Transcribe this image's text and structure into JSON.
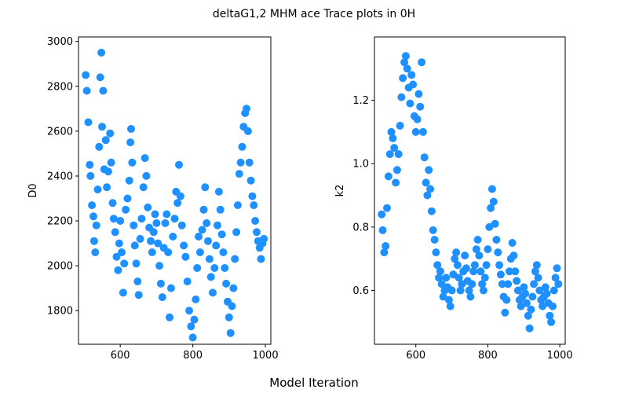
{
  "figure": {
    "title": "deltaG1,2 MHM ace Trace plots in 0H",
    "xlabel": "Model Iteration"
  },
  "colors": {
    "points": "#1e90ff",
    "axes": "#000000"
  },
  "chart_data": [
    {
      "type": "scatter",
      "title": "",
      "xlabel": "",
      "ylabel": "D0",
      "xlim": [
        485,
        1015
      ],
      "ylim": [
        1650,
        3020
      ],
      "xticks": [
        600,
        800,
        1000
      ],
      "yticks": [
        1800,
        2000,
        2200,
        2400,
        2600,
        2800,
        3000
      ],
      "x": [
        505,
        508,
        512,
        516,
        518,
        522,
        526,
        528,
        531,
        534,
        538,
        542,
        545,
        548,
        550,
        553,
        556,
        560,
        563,
        567,
        572,
        575,
        579,
        582,
        586,
        590,
        594,
        597,
        600,
        604,
        608,
        611,
        615,
        620,
        625,
        628,
        630,
        633,
        637,
        640,
        644,
        648,
        651,
        655,
        659,
        664,
        668,
        672,
        676,
        680,
        684,
        688,
        692,
        696,
        700,
        704,
        708,
        712,
        716,
        720,
        724,
        728,
        732,
        736,
        740,
        745,
        750,
        754,
        758,
        762,
        766,
        770,
        775,
        780,
        785,
        790,
        795,
        800,
        804,
        808,
        812,
        816,
        820,
        826,
        830,
        834,
        838,
        842,
        846,
        850,
        855,
        860,
        864,
        868,
        872,
        876,
        880,
        884,
        888,
        892,
        896,
        900,
        904,
        908,
        912,
        916,
        920,
        924,
        928,
        932,
        936,
        940,
        944,
        948,
        952,
        956,
        960,
        964,
        968,
        972,
        976,
        980,
        984,
        988,
        992,
        996
      ],
      "y": [
        2850,
        2780,
        2640,
        2450,
        2400,
        2270,
        2220,
        2110,
        2060,
        2180,
        2340,
        2530,
        2840,
        2950,
        2620,
        2780,
        2430,
        2560,
        2350,
        2420,
        2590,
        2460,
        2280,
        2210,
        2150,
        2040,
        1980,
        2100,
        2200,
        2060,
        1880,
        2010,
        2250,
        2300,
        2380,
        2550,
        2610,
        2460,
        2180,
        2090,
        2010,
        1930,
        1870,
        2120,
        2210,
        2350,
        2480,
        2400,
        2260,
        2170,
        2110,
        2060,
        2150,
        2230,
        2190,
        2100,
        2000,
        1920,
        1860,
        2080,
        2190,
        2230,
        2060,
        1770,
        1900,
        2130,
        2210,
        2330,
        2280,
        2450,
        2310,
        2180,
        2090,
        2040,
        1930,
        1800,
        1730,
        1680,
        1760,
        1850,
        1990,
        2130,
        2060,
        2160,
        2250,
        2350,
        2190,
        2110,
        2030,
        1950,
        1880,
        1990,
        2090,
        2180,
        2330,
        2250,
        2140,
        2060,
        1990,
        1920,
        1840,
        1770,
        1700,
        1820,
        1900,
        2030,
        2150,
        2270,
        2410,
        2460,
        2530,
        2620,
        2680,
        2700,
        2600,
        2460,
        2380,
        2310,
        2270,
        2200,
        2150,
        2110,
        2080,
        2030,
        2100,
        2120
      ]
    },
    {
      "type": "scatter",
      "title": "",
      "xlabel": "",
      "ylabel": "k2",
      "xlim": [
        485,
        1015
      ],
      "ylim": [
        0.43,
        1.4
      ],
      "xticks": [
        600,
        800,
        1000
      ],
      "yticks": [
        0.6,
        0.8,
        1.0,
        1.2
      ],
      "x": [
        505,
        508,
        512,
        516,
        520,
        524,
        528,
        532,
        536,
        540,
        544,
        548,
        552,
        556,
        560,
        564,
        568,
        572,
        576,
        580,
        584,
        588,
        592,
        596,
        600,
        604,
        608,
        612,
        616,
        620,
        624,
        628,
        632,
        636,
        640,
        644,
        648,
        652,
        656,
        660,
        664,
        668,
        672,
        676,
        680,
        684,
        688,
        692,
        696,
        700,
        704,
        708,
        712,
        716,
        720,
        724,
        728,
        732,
        736,
        740,
        744,
        748,
        752,
        756,
        760,
        764,
        768,
        772,
        776,
        780,
        784,
        788,
        792,
        796,
        800,
        804,
        808,
        812,
        816,
        820,
        824,
        828,
        832,
        836,
        840,
        844,
        848,
        852,
        856,
        860,
        864,
        868,
        872,
        876,
        880,
        884,
        888,
        892,
        896,
        900,
        904,
        908,
        912,
        916,
        920,
        924,
        928,
        932,
        936,
        940,
        944,
        948,
        952,
        956,
        960,
        964,
        968,
        972,
        976,
        980,
        984,
        988,
        992,
        996
      ],
      "y": [
        0.84,
        0.79,
        0.72,
        0.74,
        0.86,
        0.96,
        1.03,
        1.1,
        1.08,
        1.05,
        0.94,
        0.98,
        1.03,
        1.12,
        1.21,
        1.27,
        1.32,
        1.34,
        1.3,
        1.24,
        1.19,
        1.28,
        1.25,
        1.15,
        1.1,
        1.14,
        1.22,
        1.18,
        1.32,
        1.1,
        1.02,
        0.94,
        0.9,
        0.98,
        0.92,
        0.85,
        0.79,
        0.76,
        0.72,
        0.68,
        0.64,
        0.66,
        0.62,
        0.58,
        0.6,
        0.64,
        0.61,
        0.57,
        0.55,
        0.6,
        0.65,
        0.7,
        0.72,
        0.68,
        0.64,
        0.6,
        0.62,
        0.66,
        0.71,
        0.67,
        0.63,
        0.6,
        0.58,
        0.62,
        0.66,
        0.68,
        0.73,
        0.76,
        0.71,
        0.66,
        0.62,
        0.6,
        0.64,
        0.68,
        0.73,
        0.8,
        0.86,
        0.92,
        0.88,
        0.81,
        0.76,
        0.72,
        0.68,
        0.65,
        0.62,
        0.58,
        0.53,
        0.57,
        0.62,
        0.66,
        0.7,
        0.75,
        0.71,
        0.66,
        0.63,
        0.6,
        0.57,
        0.55,
        0.58,
        0.61,
        0.59,
        0.56,
        0.52,
        0.48,
        0.54,
        0.58,
        0.62,
        0.66,
        0.68,
        0.64,
        0.6,
        0.57,
        0.55,
        0.58,
        0.61,
        0.59,
        0.56,
        0.52,
        0.5,
        0.55,
        0.6,
        0.64,
        0.67,
        0.62
      ]
    }
  ]
}
